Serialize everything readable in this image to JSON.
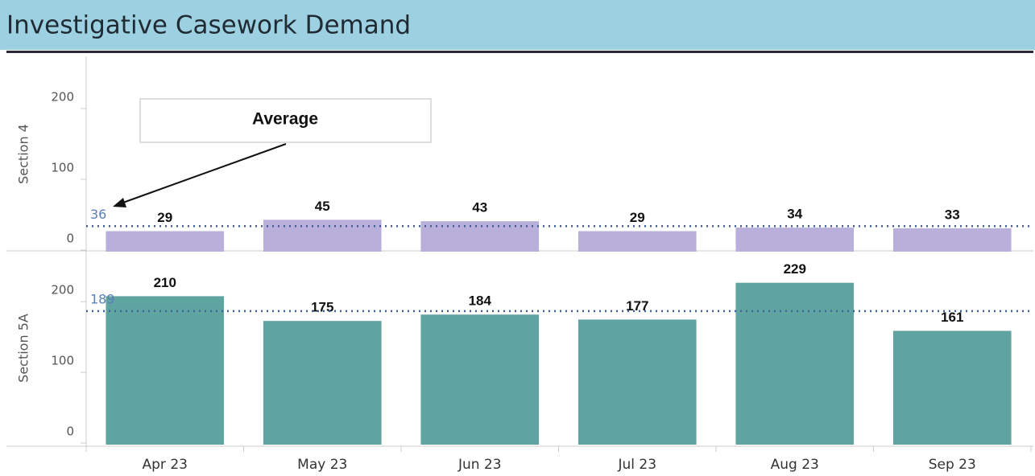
{
  "title": "Investigative Casework Demand",
  "chart_data": [
    {
      "type": "bar",
      "y_label": "Section 4",
      "categories": [
        "Apr 23",
        "May 23",
        "Jun 23",
        "Jul 23",
        "Aug 23",
        "Sep 23"
      ],
      "values": [
        29,
        45,
        43,
        29,
        34,
        33
      ],
      "color": "#b8b0da",
      "ylim": [
        0,
        276
      ],
      "yticks": [
        0,
        100,
        200
      ],
      "reference_line": {
        "value": 36,
        "color": "#3f5f96"
      },
      "annotation": "Average"
    },
    {
      "type": "bar",
      "y_label": "Section 5A",
      "categories": [
        "Apr 23",
        "May 23",
        "Jun 23",
        "Jul 23",
        "Aug 23",
        "Sep 23"
      ],
      "values": [
        210,
        175,
        184,
        177,
        229,
        161
      ],
      "color": "#60a4a2",
      "ylim": [
        0,
        273
      ],
      "yticks": [
        0,
        100,
        200
      ],
      "reference_line": {
        "value": 189,
        "color": "#3f5f96"
      }
    }
  ]
}
